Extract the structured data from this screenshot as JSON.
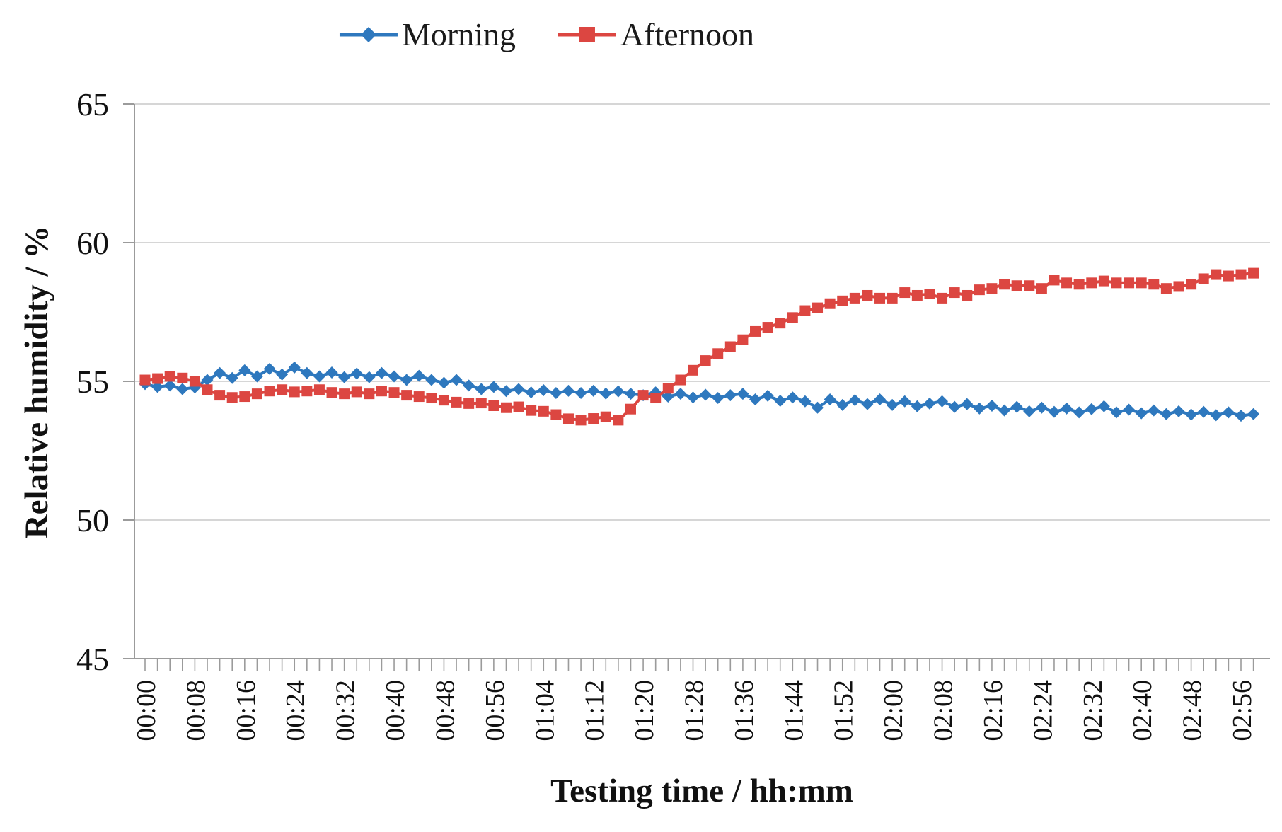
{
  "page": {
    "background": "#ffffff"
  },
  "legend": {
    "items": [
      {
        "label": "Morning",
        "marker": "diamond",
        "color": "#2E78BE"
      },
      {
        "label": "Afternoon",
        "marker": "square",
        "color": "#DC4641"
      }
    ]
  },
  "chart_data": {
    "type": "line",
    "title": "",
    "xlabel": "Testing time / hh:mm",
    "ylabel": "Relative humidity / %",
    "ylim": [
      45,
      65
    ],
    "y_ticks": [
      45,
      50,
      55,
      60,
      65
    ],
    "x_tick_labels": [
      "00:00",
      "00:08",
      "00:16",
      "00:24",
      "00:32",
      "00:40",
      "00:48",
      "00:56",
      "01:04",
      "01:12",
      "01:20",
      "01:28",
      "01:36",
      "01:44",
      "01:52",
      "02:00",
      "02:08",
      "02:16",
      "02:24",
      "02:32",
      "02:40",
      "02:48",
      "02:56"
    ],
    "x_tick_interval_min": 8,
    "minor_tick_interval_min": 2,
    "t_start_min": 0,
    "t_step_min": 2,
    "t_end_min": 178,
    "grid": "horizontal-only",
    "legend_position": "top-center",
    "colors": {
      "grid": "#C9C9C9",
      "axis": "#9B9B9B",
      "text": "#111111"
    },
    "series": [
      {
        "name": "Morning",
        "color": "#2E78BE",
        "marker": "diamond",
        "values": [
          54.9,
          54.8,
          54.85,
          54.72,
          54.78,
          55.05,
          55.3,
          55.12,
          55.4,
          55.18,
          55.45,
          55.25,
          55.5,
          55.3,
          55.18,
          55.32,
          55.15,
          55.28,
          55.15,
          55.3,
          55.18,
          55.05,
          55.2,
          55.05,
          54.95,
          55.05,
          54.85,
          54.72,
          54.8,
          54.65,
          54.72,
          54.6,
          54.68,
          54.58,
          54.66,
          54.58,
          54.66,
          54.56,
          54.64,
          54.55,
          54.5,
          54.6,
          54.45,
          54.55,
          54.42,
          54.52,
          54.4,
          54.5,
          54.55,
          54.35,
          54.48,
          54.3,
          54.42,
          54.28,
          54.05,
          54.35,
          54.15,
          54.32,
          54.18,
          54.35,
          54.15,
          54.28,
          54.1,
          54.2,
          54.28,
          54.08,
          54.18,
          54.02,
          54.12,
          53.95,
          54.08,
          53.92,
          54.05,
          53.9,
          54.02,
          53.88,
          54.0,
          54.1,
          53.88,
          53.98,
          53.85,
          53.95,
          53.82,
          53.92,
          53.8,
          53.9,
          53.78,
          53.88,
          53.76,
          53.82
        ]
      },
      {
        "name": "Afternoon",
        "color": "#DC4641",
        "marker": "square",
        "values": [
          55.05,
          55.1,
          55.18,
          55.12,
          55.0,
          54.7,
          54.5,
          54.42,
          54.45,
          54.55,
          54.65,
          54.7,
          54.62,
          54.65,
          54.7,
          54.6,
          54.55,
          54.62,
          54.55,
          54.65,
          54.6,
          54.5,
          54.45,
          54.4,
          54.32,
          54.25,
          54.2,
          54.22,
          54.12,
          54.05,
          54.08,
          53.95,
          53.92,
          53.8,
          53.65,
          53.6,
          53.66,
          53.72,
          53.6,
          54.0,
          54.5,
          54.4,
          54.75,
          55.05,
          55.4,
          55.75,
          56.0,
          56.25,
          56.5,
          56.8,
          56.95,
          57.1,
          57.3,
          57.55,
          57.65,
          57.8,
          57.9,
          58.0,
          58.1,
          58.0,
          58.0,
          58.2,
          58.1,
          58.15,
          58.0,
          58.2,
          58.1,
          58.3,
          58.35,
          58.5,
          58.45,
          58.45,
          58.35,
          58.65,
          58.55,
          58.5,
          58.55,
          58.62,
          58.55,
          58.55,
          58.55,
          58.5,
          58.35,
          58.42,
          58.5,
          58.7,
          58.85,
          58.8,
          58.85,
          58.9
        ]
      }
    ]
  }
}
